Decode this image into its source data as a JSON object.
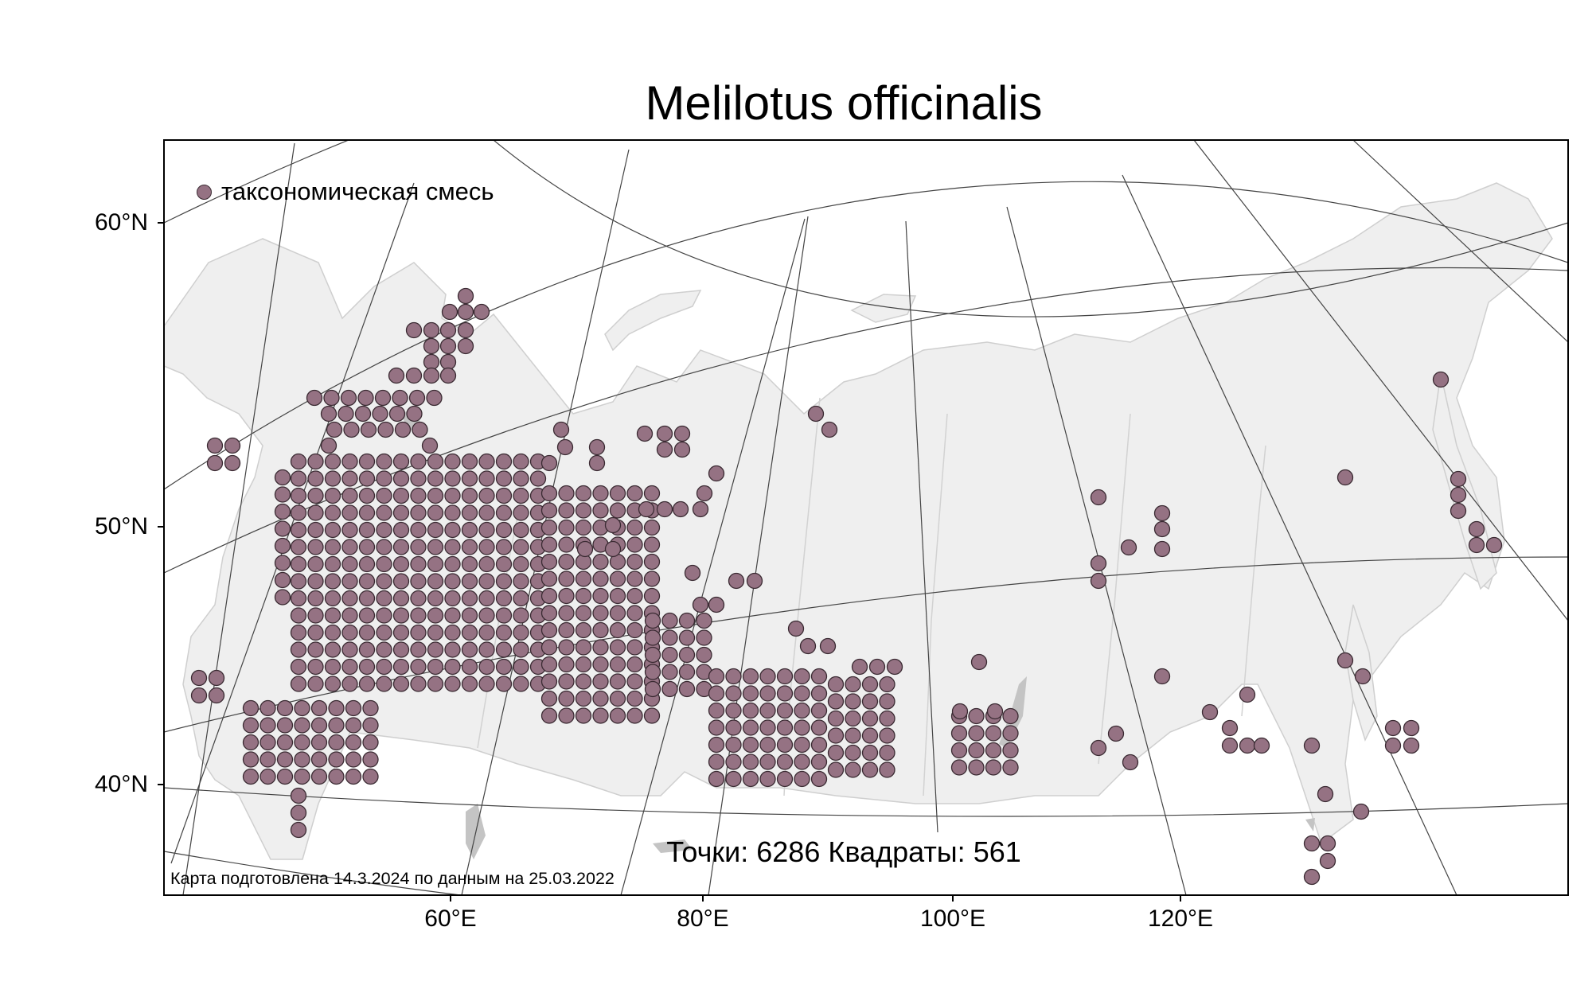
{
  "title": "Melilotus officinalis",
  "legend": {
    "label": "таксономическая смесь",
    "color": "#957283"
  },
  "stats": "Точки: 6286 Квадраты: 561",
  "footnote": "Карта подготовлена 14.3.2024 по данным на 25.03.2022",
  "lat_labels": {
    "lat60": "60°N",
    "lat50": "50°N",
    "lat40": "40°N"
  },
  "lon_labels": {
    "lon60": "60°E",
    "lon80": "80°E",
    "lon100": "100°E",
    "lon120": "120°E"
  },
  "colors": {
    "land": "#efefef",
    "land_stroke": "#cfcfcf",
    "lake": "#c4c4c4",
    "grid": "#444444",
    "point": "#957283",
    "point_stroke": "#3a2a32"
  }
}
